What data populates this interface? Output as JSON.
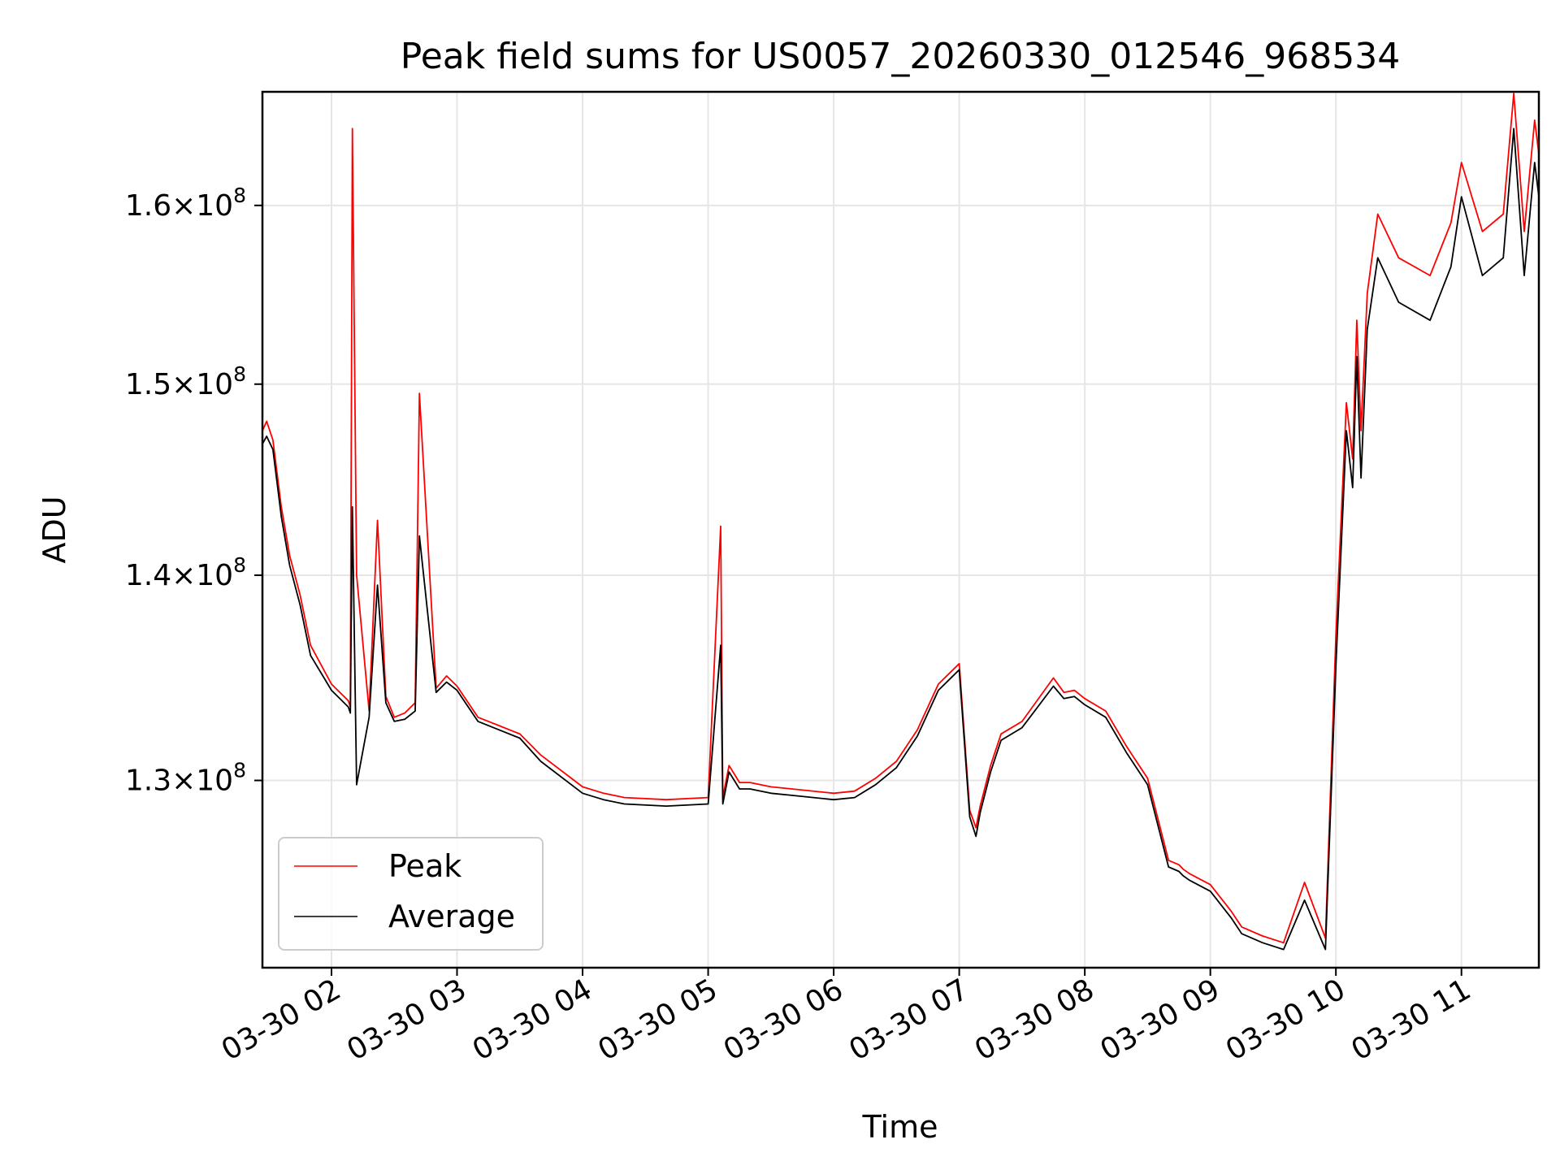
{
  "chart_data": {
    "type": "line",
    "title": "Peak field sums for US0057_20260330_012546_968534",
    "xlabel": "Time",
    "ylabel": "ADU",
    "x_axis_type": "time",
    "x_ticks": [
      "03-30 02",
      "03-30 03",
      "03-30 04",
      "03-30 05",
      "03-30 06",
      "03-30 07",
      "03-30 08",
      "03-30 09",
      "03-30 10",
      "03-30 11"
    ],
    "y_ticks": [
      {
        "value": 130000000,
        "mantissa": "1.3",
        "exp": "8"
      },
      {
        "value": 140000000,
        "mantissa": "1.4",
        "exp": "8"
      },
      {
        "value": 150000000,
        "mantissa": "1.5",
        "exp": "8"
      },
      {
        "value": 160000000,
        "mantissa": "1.6",
        "exp": "8"
      }
    ],
    "yscale": "log",
    "xlim": [
      "2026-03-30 01:27",
      "2026-03-30 11:37"
    ],
    "ylim": [
      121500000,
      166700000
    ],
    "grid": true,
    "legend_position": "lower-left",
    "series": [
      {
        "name": "Peak",
        "color": "#ff0000",
        "x": [
          "01:27",
          "01:29",
          "01:32",
          "01:36",
          "01:40",
          "01:45",
          "01:50",
          "02:00",
          "02:08",
          "02:09",
          "02:10",
          "02:12",
          "02:18",
          "02:22",
          "02:26",
          "02:30",
          "02:35",
          "02:40",
          "02:42",
          "02:50",
          "02:55",
          "03:00",
          "03:10",
          "03:20",
          "03:30",
          "03:40",
          "04:00",
          "04:10",
          "04:20",
          "04:40",
          "05:00",
          "05:06",
          "05:07",
          "05:10",
          "05:15",
          "05:20",
          "05:30",
          "05:40",
          "06:00",
          "06:10",
          "06:20",
          "06:30",
          "06:40",
          "06:50",
          "07:00",
          "07:05",
          "07:08",
          "07:10",
          "07:15",
          "07:20",
          "07:30",
          "07:45",
          "07:50",
          "07:55",
          "08:00",
          "08:10",
          "08:20",
          "08:30",
          "08:40",
          "08:45",
          "08:47",
          "08:50",
          "09:00",
          "09:10",
          "09:15",
          "09:25",
          "09:35",
          "09:45",
          "09:55",
          "10:00",
          "10:05",
          "10:08",
          "10:10",
          "10:12",
          "10:15",
          "10:20",
          "10:30",
          "10:45",
          "10:55",
          "11:00",
          "11:10",
          "11:20",
          "11:25",
          "11:30",
          "11:35",
          "11:37"
        ],
        "values": [
          147500000,
          148000000,
          147000000,
          143500000,
          141000000,
          139000000,
          136500000,
          134600000,
          133800000,
          133500000,
          164500000,
          140000000,
          133300000,
          142800000,
          134000000,
          133000000,
          133200000,
          133700000,
          149500000,
          134400000,
          135000000,
          134500000,
          133000000,
          132600000,
          132200000,
          131200000,
          129700000,
          129400000,
          129200000,
          129100000,
          129200000,
          142500000,
          129200000,
          130700000,
          129900000,
          129900000,
          129700000,
          129600000,
          129400000,
          129500000,
          130100000,
          130900000,
          132400000,
          134600000,
          135600000,
          128600000,
          127800000,
          128800000,
          130700000,
          132200000,
          132800000,
          134900000,
          134200000,
          134300000,
          133900000,
          133300000,
          131600000,
          130100000,
          126300000,
          126100000,
          125900000,
          125700000,
          125200000,
          124000000,
          123300000,
          122900000,
          122600000,
          125300000,
          122800000,
          137000000,
          149000000,
          146000000,
          153500000,
          147500000,
          155000000,
          159500000,
          157000000,
          156000000,
          159000000,
          162500000,
          158500000,
          159500000,
          166600000,
          158500000,
          165000000,
          163000000
        ]
      },
      {
        "name": "Average",
        "color": "#000000",
        "x": [
          "01:27",
          "01:29",
          "01:32",
          "01:36",
          "01:40",
          "01:45",
          "01:50",
          "02:00",
          "02:08",
          "02:09",
          "02:10",
          "02:12",
          "02:18",
          "02:22",
          "02:26",
          "02:30",
          "02:35",
          "02:40",
          "02:42",
          "02:50",
          "02:55",
          "03:00",
          "03:10",
          "03:20",
          "03:30",
          "03:40",
          "04:00",
          "04:10",
          "04:20",
          "04:40",
          "05:00",
          "05:06",
          "05:07",
          "05:10",
          "05:15",
          "05:20",
          "05:30",
          "05:40",
          "06:00",
          "06:10",
          "06:20",
          "06:30",
          "06:40",
          "06:50",
          "07:00",
          "07:05",
          "07:08",
          "07:10",
          "07:15",
          "07:20",
          "07:30",
          "07:45",
          "07:50",
          "07:55",
          "08:00",
          "08:10",
          "08:20",
          "08:30",
          "08:40",
          "08:45",
          "08:47",
          "08:50",
          "09:00",
          "09:10",
          "09:15",
          "09:25",
          "09:35",
          "09:45",
          "09:55",
          "10:00",
          "10:05",
          "10:08",
          "10:10",
          "10:12",
          "10:15",
          "10:20",
          "10:30",
          "10:45",
          "10:55",
          "11:00",
          "11:10",
          "11:20",
          "11:25",
          "11:30",
          "11:35",
          "11:37"
        ],
        "values": [
          146800000,
          147200000,
          146500000,
          143000000,
          140500000,
          138500000,
          136000000,
          134300000,
          133500000,
          133200000,
          143500000,
          129800000,
          133000000,
          139500000,
          133700000,
          132800000,
          132900000,
          133300000,
          142000000,
          134200000,
          134700000,
          134300000,
          132800000,
          132400000,
          132000000,
          130900000,
          129400000,
          129100000,
          128900000,
          128800000,
          128900000,
          136500000,
          128900000,
          130400000,
          129600000,
          129600000,
          129400000,
          129300000,
          129100000,
          129200000,
          129800000,
          130600000,
          132100000,
          134300000,
          135300000,
          128300000,
          127400000,
          128500000,
          130400000,
          131900000,
          132500000,
          134500000,
          133900000,
          134000000,
          133600000,
          133000000,
          131300000,
          129800000,
          126000000,
          125800000,
          125600000,
          125400000,
          124900000,
          123700000,
          123000000,
          122600000,
          122300000,
          124500000,
          122300000,
          135500000,
          147500000,
          144500000,
          151500000,
          145000000,
          153000000,
          157000000,
          154500000,
          153500000,
          156500000,
          160500000,
          156000000,
          157000000,
          164500000,
          156000000,
          162500000,
          160500000
        ]
      }
    ]
  }
}
